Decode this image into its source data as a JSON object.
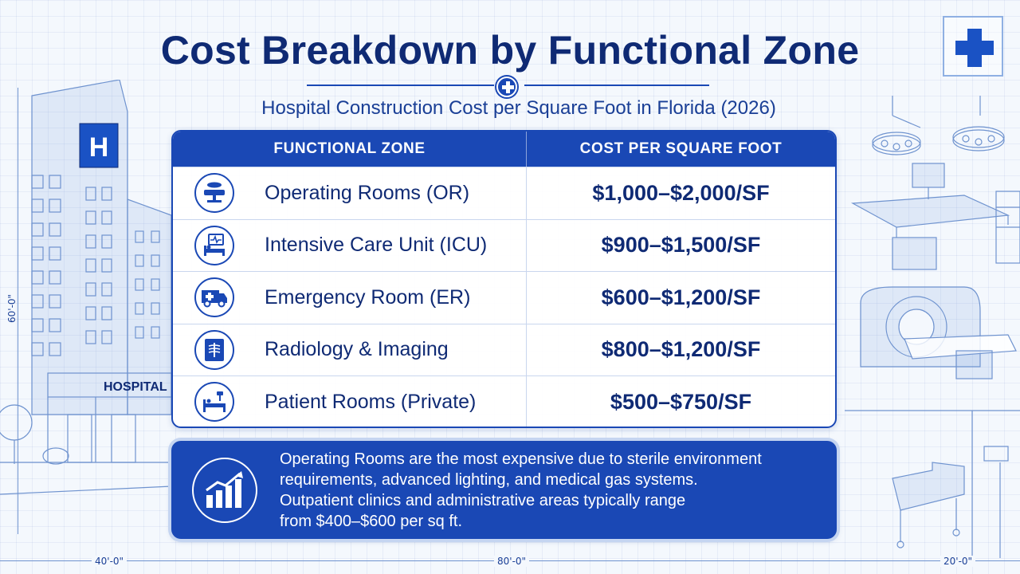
{
  "header": {
    "title": "Cost Breakdown by Functional Zone",
    "subtitle": "Hospital Construction Cost per Square Foot in Florida (2026)"
  },
  "table": {
    "columns": [
      "FUNCTIONAL ZONE",
      "COST PER SQUARE FOOT"
    ],
    "rows": [
      {
        "zone": "Operating Rooms (OR)",
        "cost": "$1,000–$2,000/SF",
        "icon": "operating-table-icon"
      },
      {
        "zone": "Intensive Care Unit (ICU)",
        "cost": "$900–$1,500/SF",
        "icon": "icu-bed-monitor-icon"
      },
      {
        "zone": "Emergency Room (ER)",
        "cost": "$600–$1,200/SF",
        "icon": "ambulance-icon"
      },
      {
        "zone": "Radiology & Imaging",
        "cost": "$800–$1,200/SF",
        "icon": "xray-icon"
      },
      {
        "zone": "Patient Rooms (Private)",
        "cost": "$500–$750/SF",
        "icon": "patient-bed-icon"
      }
    ]
  },
  "note": {
    "icon": "growth-chart-icon",
    "lines": [
      "Operating Rooms are the most expensive due to sterile environment",
      "requirements, advanced lighting, and medical gas systems.",
      "Outpatient clinics and administrative areas typically range",
      "from $400–$600 per sq ft."
    ]
  },
  "illustration": {
    "hospital_sign": "HOSPITAL",
    "building_letter": "H",
    "dimensions": {
      "left_vertical": "60'-0\"",
      "bottom_left": "40'-0\"",
      "bottom_center": "80'-0\"",
      "bottom_right": "20'-0\""
    }
  },
  "colors": {
    "primary": "#1a48b5",
    "title": "#0f2a74",
    "background": "#f4f8fd"
  }
}
